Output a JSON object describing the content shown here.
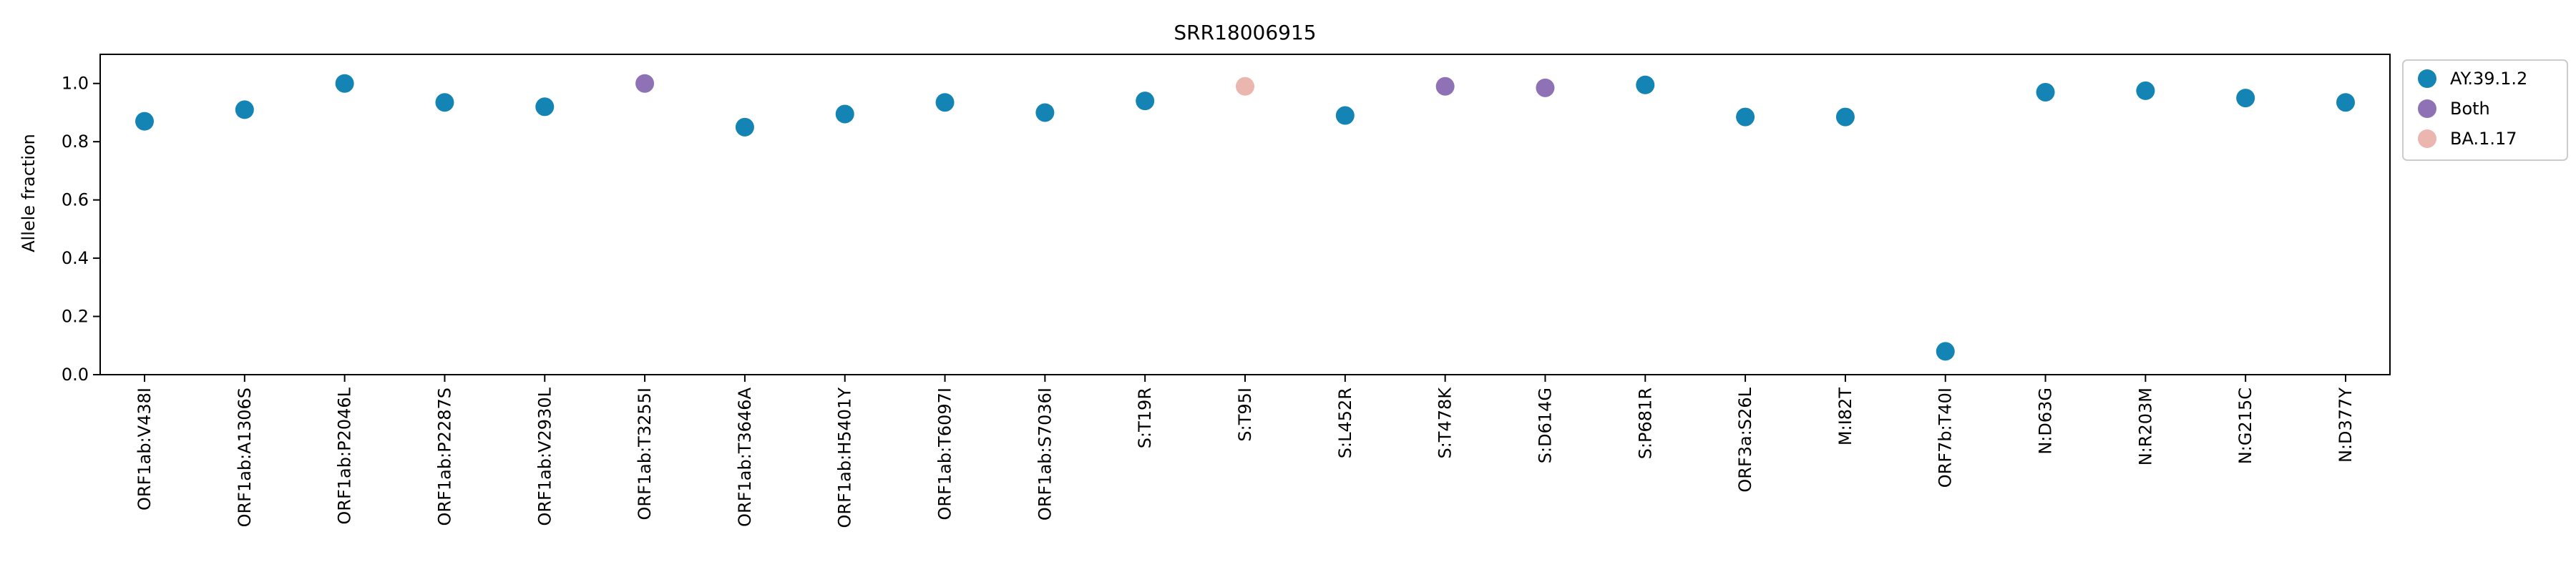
{
  "chart_data": {
    "type": "scatter",
    "title": "SRR18006915",
    "xlabel": "",
    "ylabel": "Allele fraction",
    "ylim": [
      0,
      1.1
    ],
    "yticks": [
      "0.0",
      "0.2",
      "0.4",
      "0.6",
      "0.8",
      "1.0"
    ],
    "grid": false,
    "legend_position": "outside-top-right",
    "categories": [
      "ORF1ab:V438I",
      "ORF1ab:A1306S",
      "ORF1ab:P2046L",
      "ORF1ab:P2287S",
      "ORF1ab:V2930L",
      "ORF1ab:T3255I",
      "ORF1ab:T3646A",
      "ORF1ab:H5401Y",
      "ORF1ab:T6097I",
      "ORF1ab:S7036I",
      "S:T19R",
      "S:T95I",
      "S:L452R",
      "S:T478K",
      "S:D614G",
      "S:P681R",
      "ORF3a:S26L",
      "M:I82T",
      "ORF7b:T40I",
      "N:D63G",
      "N:R203M",
      "N:G215C",
      "N:D377Y"
    ],
    "values": [
      0.87,
      0.91,
      1.0,
      0.935,
      0.92,
      1.0,
      0.85,
      0.895,
      0.935,
      0.9,
      0.94,
      0.99,
      0.89,
      0.99,
      0.985,
      0.995,
      0.885,
      0.885,
      0.08,
      0.97,
      0.975,
      0.95,
      0.935
    ],
    "point_group": [
      "AY.39.1.2",
      "AY.39.1.2",
      "AY.39.1.2",
      "AY.39.1.2",
      "AY.39.1.2",
      "Both",
      "AY.39.1.2",
      "AY.39.1.2",
      "AY.39.1.2",
      "AY.39.1.2",
      "AY.39.1.2",
      "BA.1.17",
      "AY.39.1.2",
      "Both",
      "Both",
      "AY.39.1.2",
      "AY.39.1.2",
      "AY.39.1.2",
      "AY.39.1.2",
      "AY.39.1.2",
      "AY.39.1.2",
      "AY.39.1.2",
      "AY.39.1.2"
    ],
    "legend": [
      {
        "name": "AY.39.1.2",
        "color": "#1484b5"
      },
      {
        "name": "Both",
        "color": "#8e72b5"
      },
      {
        "name": "BA.1.17",
        "color": "#ebb5b0"
      }
    ]
  }
}
